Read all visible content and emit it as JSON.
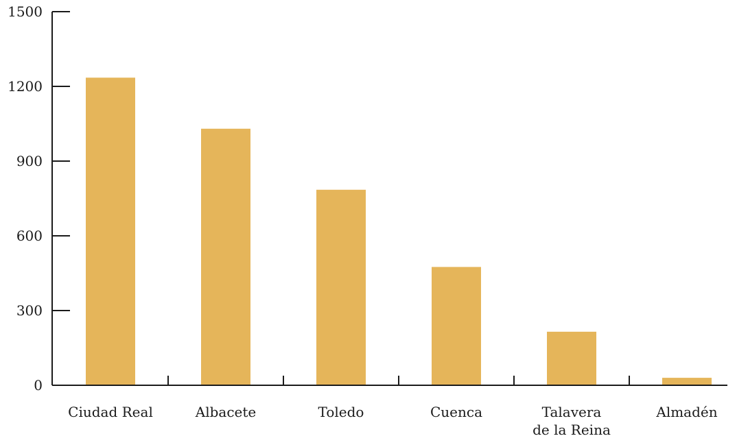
{
  "chart_data": {
    "type": "bar",
    "title": "",
    "xlabel": "",
    "ylabel": "",
    "categories": [
      "Ciudad Real",
      "Albacete",
      "Toledo",
      "Cuenca",
      "Talavera de la Reina",
      "Almadén"
    ],
    "category_lines": [
      [
        "Ciudad Real"
      ],
      [
        "Albacete"
      ],
      [
        "Toledo"
      ],
      [
        "Cuenca"
      ],
      [
        "Talavera",
        "de la Reina"
      ],
      [
        "Almadén"
      ]
    ],
    "values": [
      1235,
      1030,
      785,
      475,
      215,
      30
    ],
    "ylim": [
      0,
      1500
    ],
    "yticks": [
      0,
      300,
      600,
      900,
      1200,
      1500
    ],
    "bar_color": "#E5B55A",
    "axis_color": "#1a1a1a",
    "grid": false,
    "legend": "none"
  }
}
